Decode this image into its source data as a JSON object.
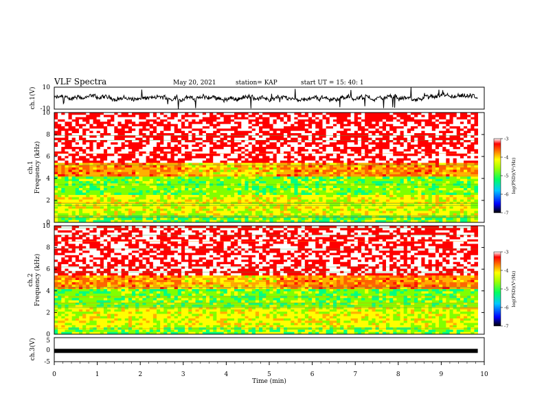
{
  "header": {
    "title": "VLF Spectra",
    "date": "May 20, 2021",
    "station": "station= KAP",
    "start": "start UT =   15: 40: 1"
  },
  "chart_data": [
    {
      "type": "line",
      "panel": "ch1-waveform",
      "ylabel": "ch.1(V)",
      "ylim": [
        -10,
        10
      ],
      "yticks": [
        "10",
        "-10"
      ],
      "xlim": [
        0,
        9.85
      ]
    },
    {
      "type": "heatmap",
      "panel": "ch1-spectrogram",
      "ylabel_line1": "ch.1",
      "ylabel_line2": "Frequency (kHz)",
      "ylim": [
        0,
        10
      ],
      "yticks": [
        "0",
        "2",
        "4",
        "6",
        "8",
        "10"
      ],
      "xlim": [
        0,
        9.85
      ],
      "colorbar": {
        "label": "log(PSD)(V²/Hz)",
        "range": [
          -7,
          -3
        ],
        "ticks": [
          "-3",
          "-4",
          "-5",
          "-6",
          "-7"
        ]
      }
    },
    {
      "type": "heatmap",
      "panel": "ch2-spectrogram",
      "ylabel_line1": "ch.2",
      "ylabel_line2": "Frequency (kHz)",
      "ylim": [
        0,
        10
      ],
      "yticks": [
        "0",
        "2",
        "4",
        "6",
        "8",
        "10"
      ],
      "xlim": [
        0,
        9.85
      ],
      "colorbar": {
        "label": "log(PSD)(V²/Hz)",
        "range": [
          -7,
          -3
        ],
        "ticks": [
          "-3",
          "-4",
          "-5",
          "-6",
          "-7"
        ]
      }
    },
    {
      "type": "line",
      "panel": "ch3-waveform",
      "ylabel": "ch.3(V)",
      "ylim": [
        -5,
        5
      ],
      "yticks": [
        "5",
        "0",
        "-5"
      ],
      "xlim": [
        0,
        9.85
      ],
      "level": -0.5
    }
  ],
  "x_axis": {
    "label": "Time (min)",
    "ticks": [
      "0",
      "1",
      "2",
      "3",
      "4",
      "5",
      "6",
      "7",
      "8",
      "9",
      "10"
    ],
    "range": [
      0,
      10
    ]
  }
}
